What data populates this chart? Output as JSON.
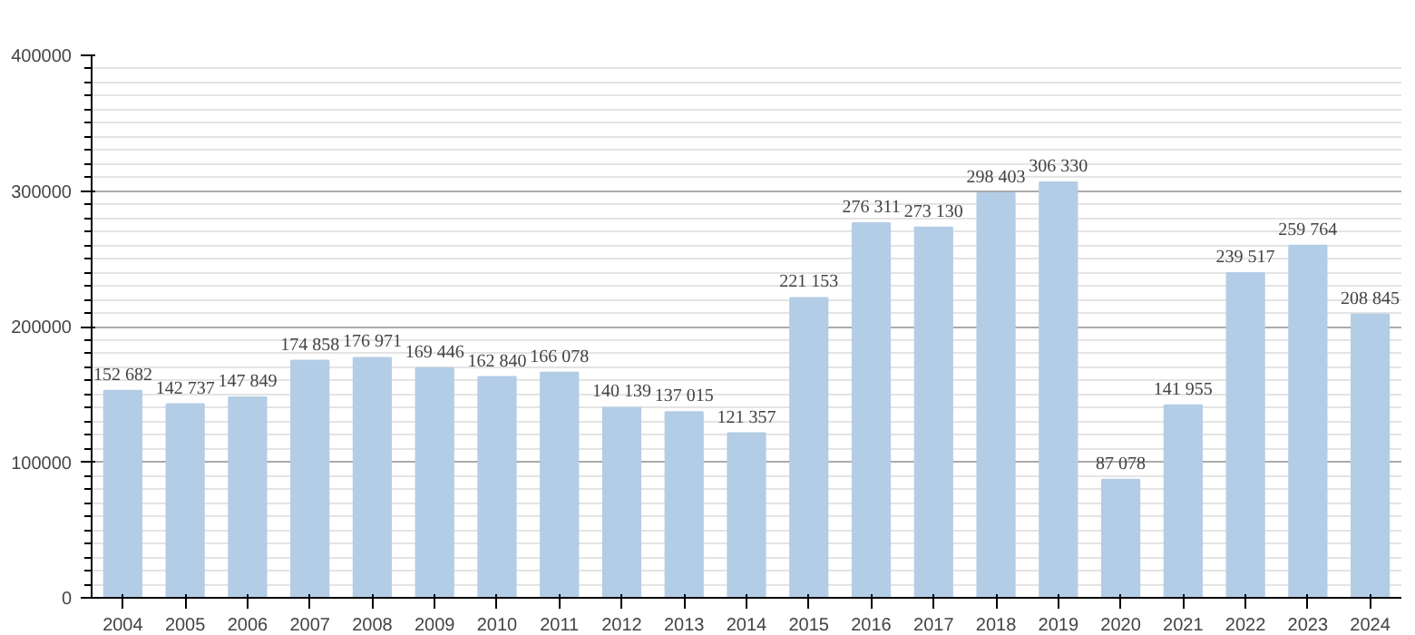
{
  "chart_data": {
    "type": "bar",
    "categories": [
      "2004",
      "2005",
      "2006",
      "2007",
      "2008",
      "2009",
      "2010",
      "2011",
      "2012",
      "2013",
      "2014",
      "2015",
      "2016",
      "2017",
      "2018",
      "2019",
      "2020",
      "2021",
      "2022",
      "2023",
      "2024"
    ],
    "values": [
      152682,
      142737,
      147849,
      174858,
      176971,
      169446,
      162840,
      166078,
      140139,
      137015,
      121357,
      221153,
      276311,
      273130,
      298403,
      306330,
      87078,
      141955,
      239517,
      259764,
      208845
    ],
    "value_labels": [
      "152 682",
      "142 737",
      "147 849",
      "174 858",
      "176 971",
      "169 446",
      "162 840",
      "166 078",
      "140 139",
      "137 015",
      "121 357",
      "221 153",
      "276 311",
      "273 130",
      "298 403",
      "306 330",
      "87 078",
      "141 955",
      "239 517",
      "259 764",
      "208 845"
    ],
    "color": "#b4cde6",
    "ylim": [
      0,
      400000
    ],
    "yticks": [
      0,
      100000,
      200000,
      300000,
      400000
    ],
    "grid": "y"
  }
}
